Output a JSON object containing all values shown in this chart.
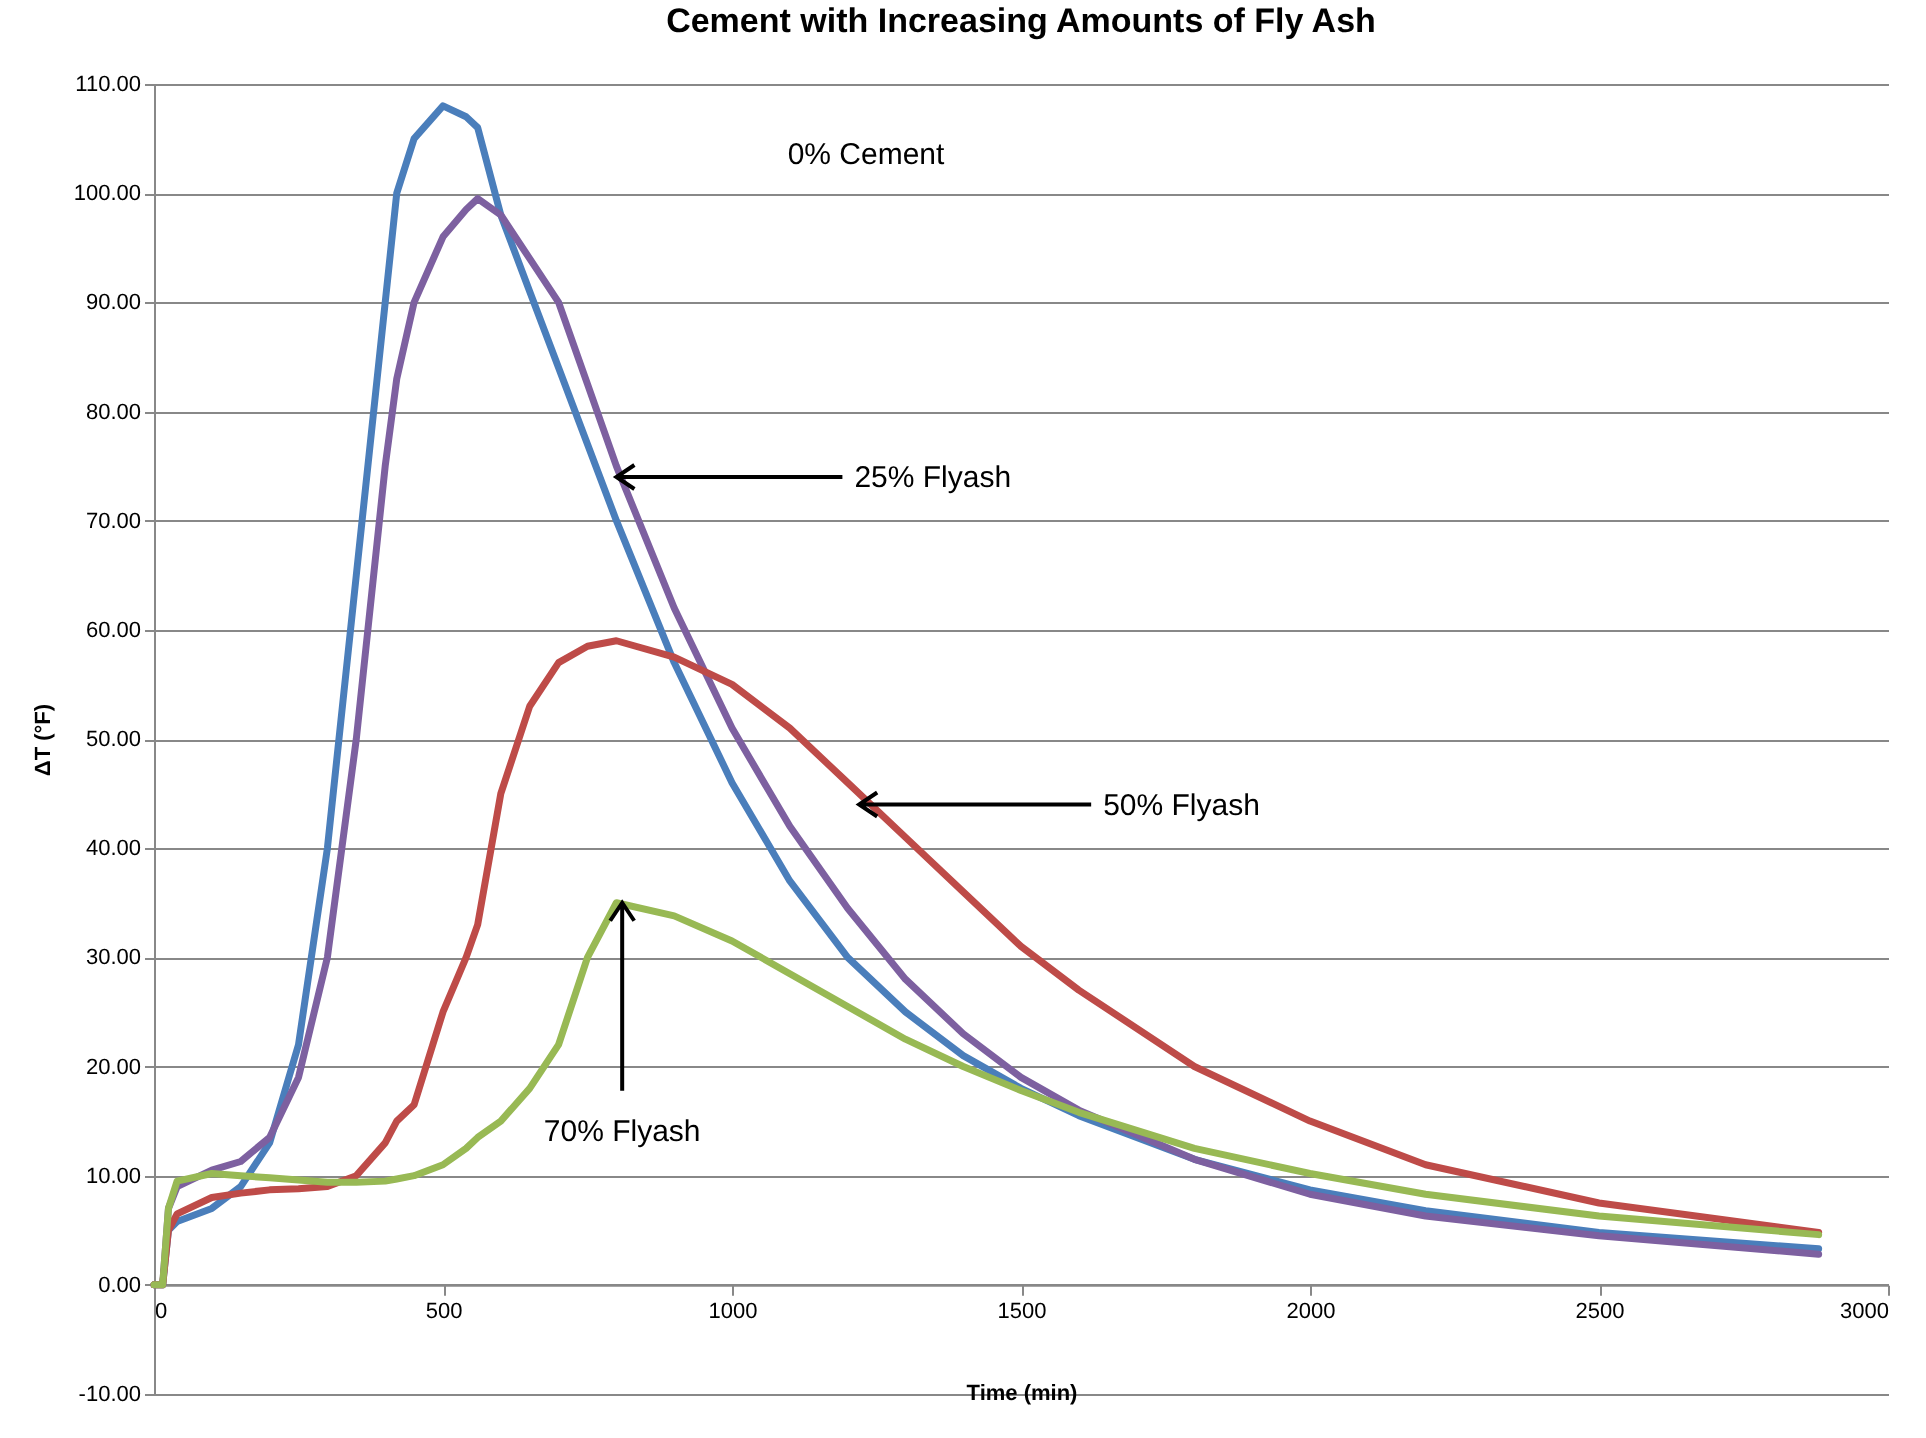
{
  "chart_data": {
    "type": "line",
    "title": "Cement with Increasing Amounts of Fly Ash",
    "xlabel": "Time (min)",
    "ylabel": "ΔT (°F)",
    "xlim": [
      0,
      3000
    ],
    "xticks": [
      0,
      500,
      1000,
      1500,
      2000,
      2500,
      3000
    ],
    "ylim": [
      -10,
      110
    ],
    "yticks": [
      {
        "value": -10,
        "label": "-10.00"
      },
      {
        "value": 0,
        "label": "0.00"
      },
      {
        "value": 10,
        "label": "10.00"
      },
      {
        "value": 20,
        "label": "20.00"
      },
      {
        "value": 30,
        "label": "30.00"
      },
      {
        "value": 40,
        "label": "40.00"
      },
      {
        "value": 50,
        "label": "50.00"
      },
      {
        "value": 60,
        "label": "60.00"
      },
      {
        "value": 70,
        "label": "70.00"
      },
      {
        "value": 80,
        "label": "80.00"
      },
      {
        "value": 90,
        "label": "90.00"
      },
      {
        "value": 100,
        "label": "100.00"
      },
      {
        "value": 110,
        "label": "110.00"
      }
    ],
    "grid": "y",
    "marker": "none",
    "line_style": "solid",
    "x": [
      0,
      15,
      25,
      40,
      100,
      150,
      200,
      250,
      300,
      350,
      400,
      420,
      450,
      500,
      540,
      560,
      600,
      650,
      700,
      750,
      800,
      900,
      1000,
      1100,
      1200,
      1300,
      1400,
      1500,
      1600,
      1800,
      2000,
      2200,
      2500,
      2880
    ],
    "series": [
      {
        "color": "#4a7ebb",
        "values": [
          0,
          0,
          5,
          5.8,
          7,
          9,
          13,
          22,
          40,
          65,
          90,
          100,
          105,
          108,
          107,
          106,
          98,
          91,
          84,
          77,
          70,
          57,
          46,
          37,
          30,
          25,
          21,
          18,
          15.5,
          11.5,
          8.7,
          6.8,
          4.8,
          3.3
        ]
      },
      {
        "color": "#7d60a0",
        "values": [
          0,
          0,
          7,
          9,
          10.5,
          11.3,
          13.5,
          19,
          30,
          50,
          75,
          83,
          90,
          96,
          98.5,
          99.5,
          98,
          94,
          90,
          82.5,
          75,
          62,
          51,
          42,
          34.5,
          28,
          23,
          19,
          16,
          11.5,
          8.3,
          6.3,
          4.5,
          2.8
        ]
      },
      {
        "color": "#be4b48",
        "values": [
          0,
          0,
          5,
          6.5,
          8,
          8.4,
          8.7,
          8.8,
          9,
          10,
          13,
          15,
          16.5,
          25,
          30,
          33,
          45,
          53,
          57,
          58.5,
          59,
          57.5,
          55,
          51,
          46,
          41,
          36,
          31,
          27,
          20,
          15,
          11,
          7.5,
          4.8
        ]
      },
      {
        "color": "#98b954",
        "values": [
          0,
          0,
          7,
          9.5,
          10.2,
          10,
          9.8,
          9.6,
          9.4,
          9.4,
          9.5,
          9.7,
          10,
          11,
          12.5,
          13.5,
          15,
          18,
          22,
          30,
          35,
          33.8,
          31.5,
          28.5,
          25.5,
          22.5,
          20,
          17.8,
          15.8,
          12.5,
          10.2,
          8.3,
          6.3,
          4.6
        ]
      }
    ],
    "annotations": [
      "0% Cement",
      {
        "text": "25% Flyash",
        "x": 800,
        "y": 74
      },
      {
        "text": "50% Flyash",
        "x": 1220,
        "y": 44
      },
      {
        "text": "70% Flyash",
        "x": 810,
        "y": 35
      }
    ]
  }
}
